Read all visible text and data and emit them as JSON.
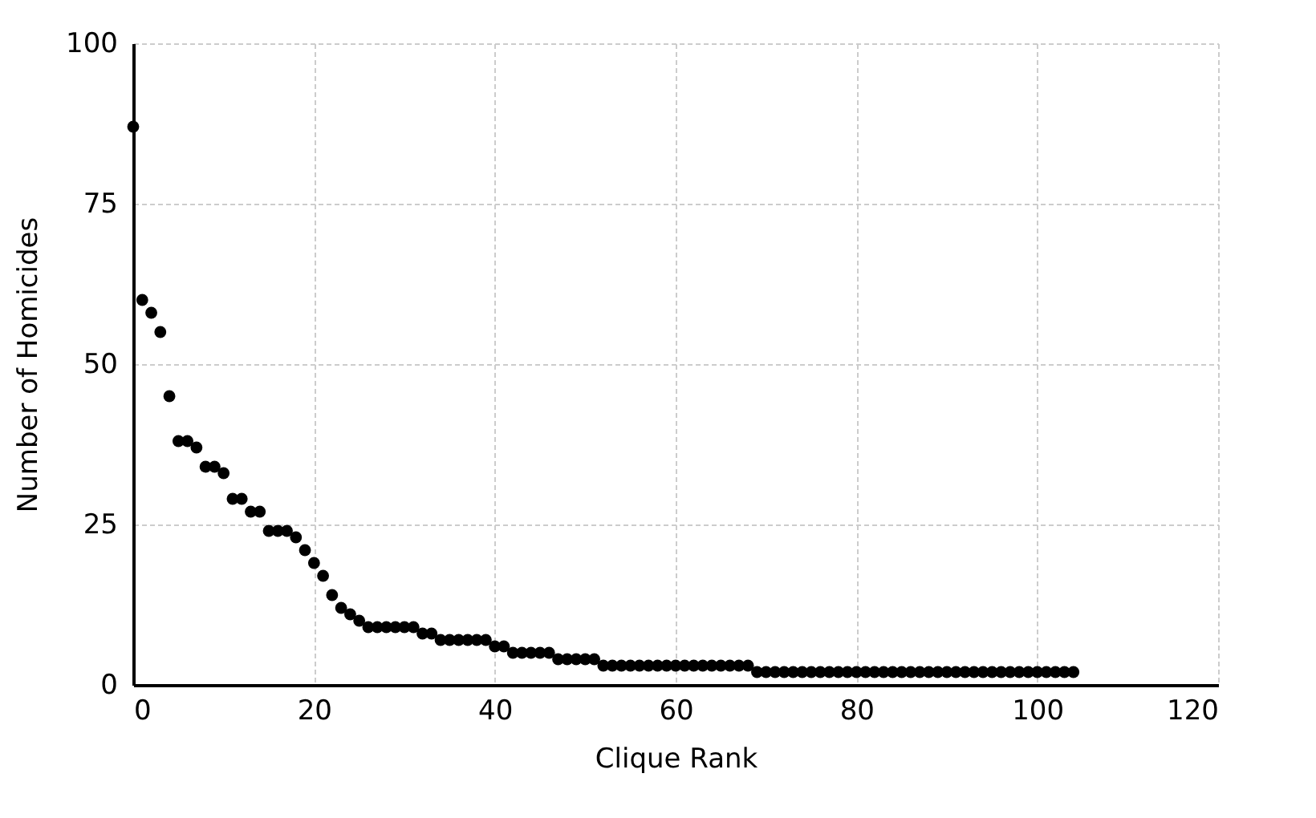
{
  "chart_data": {
    "type": "scatter",
    "xlabel": "Clique Rank",
    "ylabel": "Number of Homicides",
    "x": [
      0,
      1,
      2,
      3,
      4,
      5,
      6,
      7,
      8,
      9,
      10,
      11,
      12,
      13,
      14,
      15,
      16,
      17,
      18,
      19,
      20,
      21,
      22,
      23,
      24,
      25,
      26,
      27,
      28,
      29,
      30,
      31,
      32,
      33,
      34,
      35,
      36,
      37,
      38,
      39,
      40,
      41,
      42,
      43,
      44,
      45,
      46,
      47,
      48,
      49,
      50,
      51,
      52,
      53,
      54,
      55,
      56,
      57,
      58,
      59,
      60,
      61,
      62,
      63,
      64,
      65,
      66,
      67,
      68,
      69,
      70,
      71,
      72,
      73,
      74,
      75,
      76,
      77,
      78,
      79,
      80,
      81,
      82,
      83,
      84,
      85,
      86,
      87,
      88,
      89,
      90,
      91,
      92,
      93,
      94,
      95,
      96,
      97,
      98,
      99,
      100,
      101,
      102,
      103,
      104
    ],
    "series": [
      {
        "color": "#000000",
        "values": [
          87,
          60,
          58,
          55,
          45,
          38,
          38,
          37,
          34,
          34,
          33,
          29,
          29,
          27,
          27,
          24,
          24,
          24,
          23,
          21,
          19,
          17,
          14,
          12,
          11,
          10,
          9,
          9,
          9,
          9,
          9,
          9,
          8,
          8,
          7,
          7,
          7,
          7,
          7,
          7,
          6,
          6,
          5,
          5,
          5,
          5,
          5,
          4,
          4,
          4,
          4,
          4,
          3,
          3,
          3,
          3,
          3,
          3,
          3,
          3,
          3,
          3,
          3,
          3,
          3,
          3,
          3,
          3,
          3,
          2,
          2,
          2,
          2,
          2,
          2,
          2,
          2,
          2,
          2,
          2,
          2,
          2,
          2,
          2,
          2,
          2,
          2,
          2,
          2,
          2,
          2,
          2,
          2,
          2,
          2,
          2,
          2,
          2,
          2,
          2,
          2,
          2,
          2,
          2,
          2
        ]
      }
    ],
    "xlim": [
      0,
      120
    ],
    "xticks": [
      0,
      20,
      40,
      60,
      80,
      100,
      120
    ],
    "ylim": [
      0,
      100
    ],
    "yticks": [
      0,
      25,
      50,
      75,
      100
    ],
    "grid": true,
    "marker": "circle"
  }
}
